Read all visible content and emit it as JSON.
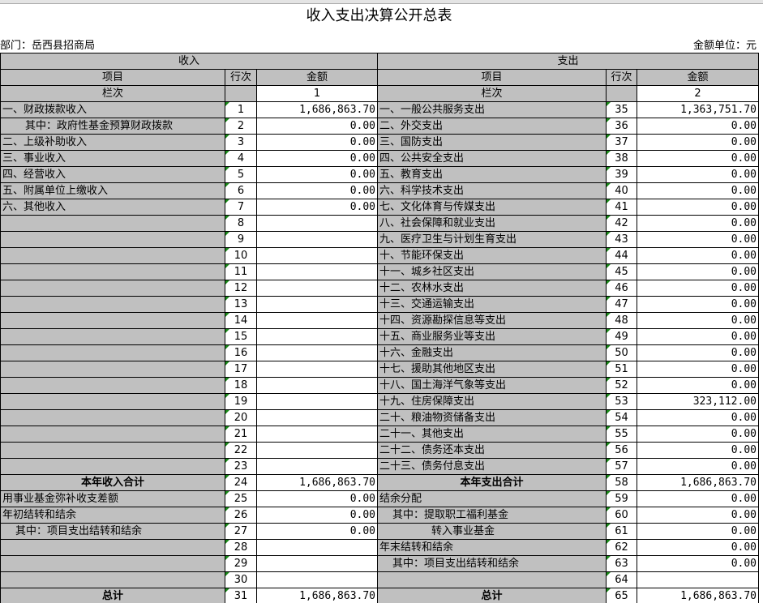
{
  "title": "收入支出决算公开总表",
  "department": "部门：岳西县招商局",
  "unit": "金额单位：元",
  "headers": {
    "income": "收入",
    "expense": "支出",
    "item": "项目",
    "row_no": "行次",
    "amount": "金额",
    "column_no": "栏次",
    "col1": "1",
    "col2": "2"
  },
  "rows": [
    [
      "一、财政拨款收入",
      "1",
      "1,686,863.70",
      "一、一般公共服务支出",
      "35",
      "1,363,751.70"
    ],
    [
      "其中：政府性基金预算财政拨款",
      "2",
      "0.00",
      "二、外交支出",
      "36",
      "0.00"
    ],
    [
      "二、上级补助收入",
      "3",
      "0.00",
      "三、国防支出",
      "37",
      "0.00"
    ],
    [
      "三、事业收入",
      "4",
      "0.00",
      "四、公共安全支出",
      "38",
      "0.00"
    ],
    [
      "四、经营收入",
      "5",
      "0.00",
      "五、教育支出",
      "39",
      "0.00"
    ],
    [
      "五、附属单位上缴收入",
      "6",
      "0.00",
      "六、科学技术支出",
      "40",
      "0.00"
    ],
    [
      "六、其他收入",
      "7",
      "0.00",
      "七、文化体育与传媒支出",
      "41",
      "0.00"
    ],
    [
      null,
      "8",
      null,
      "八、社会保障和就业支出",
      "42",
      "0.00"
    ],
    [
      null,
      "9",
      null,
      "九、医疗卫生与计划生育支出",
      "43",
      "0.00"
    ],
    [
      null,
      "10",
      null,
      "十、节能环保支出",
      "44",
      "0.00"
    ],
    [
      null,
      "11",
      null,
      "十一、城乡社区支出",
      "45",
      "0.00"
    ],
    [
      null,
      "12",
      null,
      "十二、农林水支出",
      "46",
      "0.00"
    ],
    [
      null,
      "13",
      null,
      "十三、交通运输支出",
      "47",
      "0.00"
    ],
    [
      null,
      "14",
      null,
      "十四、资源勘探信息等支出",
      "48",
      "0.00"
    ],
    [
      null,
      "15",
      null,
      "十五、商业服务业等支出",
      "49",
      "0.00"
    ],
    [
      null,
      "16",
      null,
      "十六、金融支出",
      "50",
      "0.00"
    ],
    [
      null,
      "17",
      null,
      "十七、援助其他地区支出",
      "51",
      "0.00"
    ],
    [
      null,
      "18",
      null,
      "十八、国土海洋气象等支出",
      "52",
      "0.00"
    ],
    [
      null,
      "19",
      null,
      "十九、住房保障支出",
      "53",
      "323,112.00"
    ],
    [
      null,
      "20",
      null,
      "二十、粮油物资储备支出",
      "54",
      "0.00"
    ],
    [
      null,
      "21",
      null,
      "二十一、其他支出",
      "55",
      "0.00"
    ],
    [
      null,
      "22",
      null,
      "二十二、债务还本支出",
      "56",
      "0.00"
    ],
    [
      null,
      "23",
      null,
      "二十三、债务付息支出",
      "57",
      "0.00"
    ],
    [
      "本年收入合计",
      "24",
      "1,686,863.70",
      "本年支出合计",
      "58",
      "1,686,863.70"
    ],
    [
      "用事业基金弥补收支差额",
      "25",
      "0.00",
      "结余分配",
      "59",
      "0.00"
    ],
    [
      "年初结转和结余",
      "26",
      "0.00",
      "其中：提取职工福利基金",
      "60",
      "0.00"
    ],
    [
      "其中：项目支出结转和结余",
      "27",
      "0.00",
      "转入事业基金",
      "61",
      "0.00"
    ],
    [
      null,
      "28",
      null,
      "年末结转和结余",
      "62",
      "0.00"
    ],
    [
      null,
      "29",
      null,
      "其中：项目支出结转和结余",
      "63",
      "0.00"
    ],
    [
      null,
      "30",
      null,
      null,
      "64",
      null
    ],
    [
      "总计",
      "31",
      "1,686,863.70",
      "总计",
      "65",
      "1,686,863.70"
    ]
  ]
}
